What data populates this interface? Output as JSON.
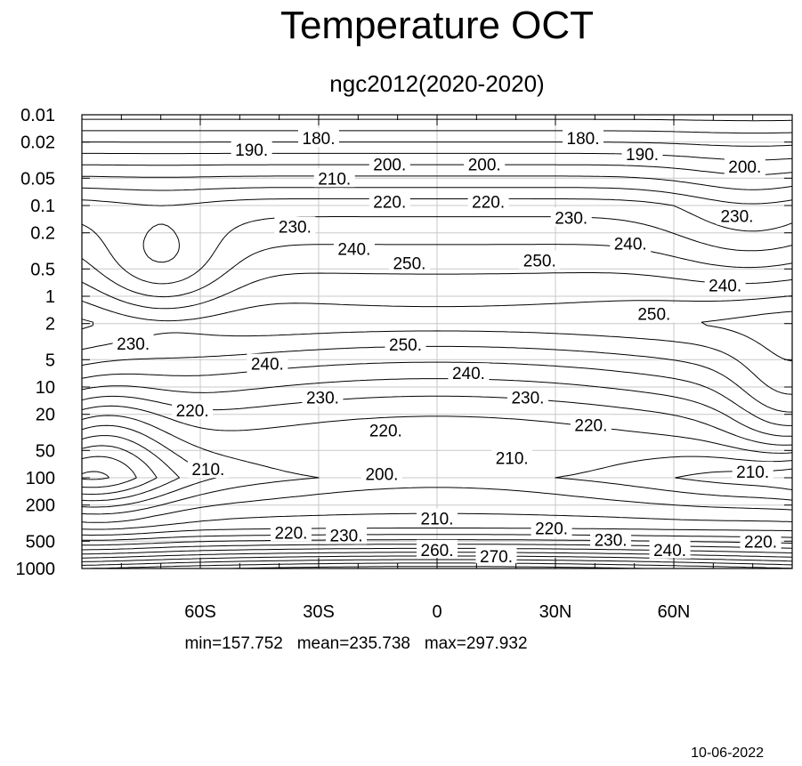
{
  "chart_data": {
    "type": "contour",
    "title": "Temperature OCT",
    "subtitle": "ngc2012(2020-2020)",
    "x_axis": {
      "tick_labels": [
        "60S",
        "30S",
        "0",
        "30N",
        "60N"
      ],
      "tick_values": [
        -60,
        -30,
        0,
        30,
        60
      ],
      "range": [
        -90,
        90
      ]
    },
    "y_axis": {
      "scale": "log",
      "inverted": true,
      "tick_labels": [
        "0.01",
        "0.02",
        "0.05",
        "0.1",
        "0.2",
        "0.5",
        "1",
        "2",
        "5",
        "10",
        "20",
        "50",
        "100",
        "200",
        "500",
        "1000"
      ],
      "tick_values": [
        0.01,
        0.02,
        0.05,
        0.1,
        0.2,
        0.5,
        1,
        2,
        5,
        10,
        20,
        50,
        100,
        200,
        500,
        1000
      ],
      "range": [
        0.01,
        1000
      ]
    },
    "grid": true,
    "contour_interval": 5,
    "contour_labels": [
      {
        "text": "180.",
        "lat": -30,
        "p": 0.018
      },
      {
        "text": "180.",
        "lat": 37,
        "p": 0.018
      },
      {
        "text": "190.",
        "lat": -47,
        "p": 0.024
      },
      {
        "text": "190.",
        "lat": 52,
        "p": 0.027
      },
      {
        "text": "200.",
        "lat": -12,
        "p": 0.035
      },
      {
        "text": "200.",
        "lat": 12,
        "p": 0.035
      },
      {
        "text": "200.",
        "lat": 78,
        "p": 0.037
      },
      {
        "text": "210.",
        "lat": -26,
        "p": 0.05
      },
      {
        "text": "220.",
        "lat": -12,
        "p": 0.09
      },
      {
        "text": "220.",
        "lat": 13,
        "p": 0.09
      },
      {
        "text": "230.",
        "lat": 34,
        "p": 0.135
      },
      {
        "text": "230.",
        "lat": -36,
        "p": 0.17
      },
      {
        "text": "230.",
        "lat": 76,
        "p": 0.13
      },
      {
        "text": "240.",
        "lat": -21,
        "p": 0.3
      },
      {
        "text": "240.",
        "lat": 49,
        "p": 0.26
      },
      {
        "text": "240.",
        "lat": 73,
        "p": 0.75
      },
      {
        "text": "250.",
        "lat": -7,
        "p": 0.43
      },
      {
        "text": "250.",
        "lat": 26,
        "p": 0.4
      },
      {
        "text": "250.",
        "lat": 55,
        "p": 1.55
      },
      {
        "text": "230.",
        "lat": -77,
        "p": 3.3
      },
      {
        "text": "250.",
        "lat": -8,
        "p": 3.4
      },
      {
        "text": "240.",
        "lat": -43,
        "p": 5.5
      },
      {
        "text": "240.",
        "lat": 8,
        "p": 7
      },
      {
        "text": "230.",
        "lat": -29,
        "p": 13
      },
      {
        "text": "230.",
        "lat": 23,
        "p": 13
      },
      {
        "text": "220.",
        "lat": -62,
        "p": 18
      },
      {
        "text": "220.",
        "lat": -13,
        "p": 30
      },
      {
        "text": "220.",
        "lat": 39,
        "p": 26
      },
      {
        "text": "210.",
        "lat": -58,
        "p": 80
      },
      {
        "text": "210.",
        "lat": 19,
        "p": 60
      },
      {
        "text": "210.",
        "lat": 80,
        "p": 85
      },
      {
        "text": "200.",
        "lat": -14,
        "p": 90
      },
      {
        "text": "210.",
        "lat": 0,
        "p": 280
      },
      {
        "text": "220.",
        "lat": -37,
        "p": 400
      },
      {
        "text": "230.",
        "lat": -23,
        "p": 430
      },
      {
        "text": "220.",
        "lat": 29,
        "p": 360
      },
      {
        "text": "230.",
        "lat": 44,
        "p": 480
      },
      {
        "text": "240.",
        "lat": 59,
        "p": 620
      },
      {
        "text": "220.",
        "lat": 82,
        "p": 500
      },
      {
        "text": "260.",
        "lat": 0,
        "p": 620
      },
      {
        "text": "270.",
        "lat": 15,
        "p": 730
      }
    ],
    "stats": "min=157.752   mean=235.738   max=297.932",
    "date": "10-06-2022"
  }
}
